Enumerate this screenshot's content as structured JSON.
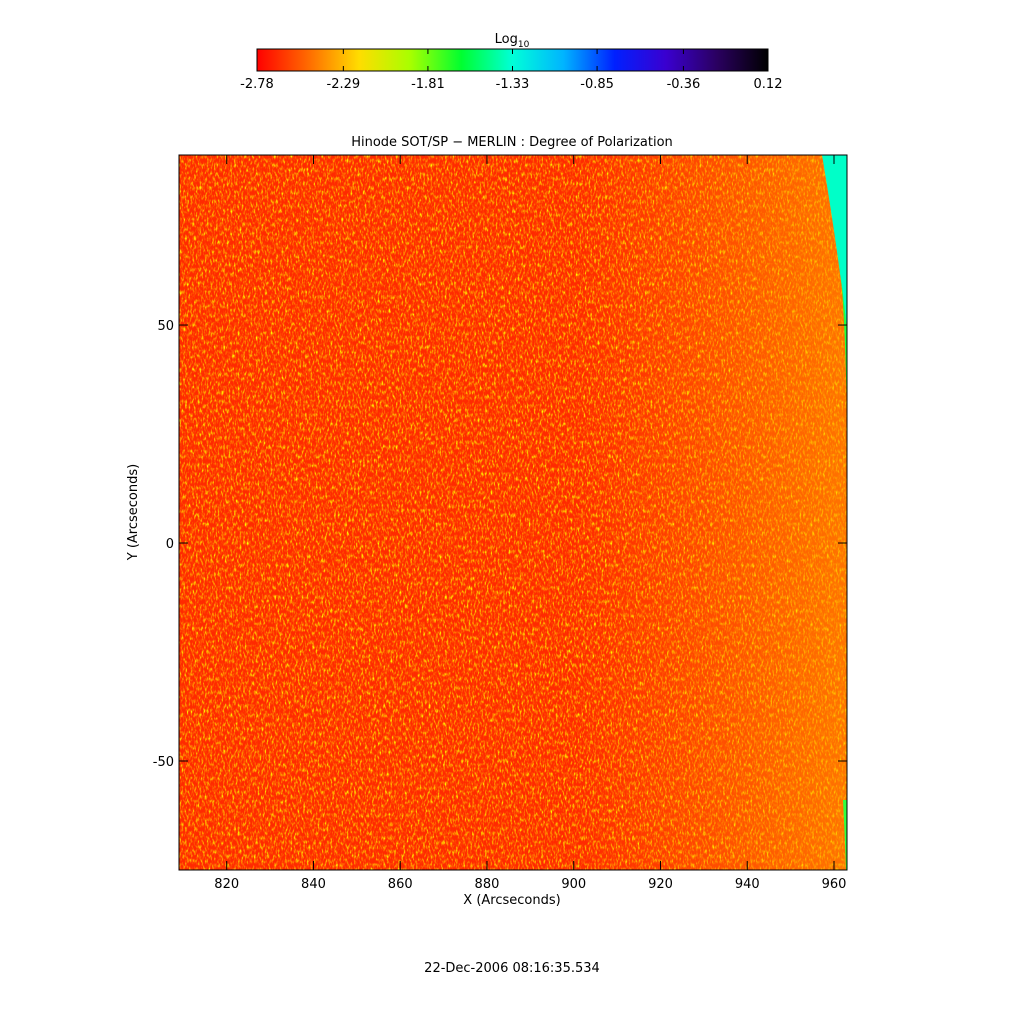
{
  "chart_data": {
    "type": "image",
    "title": "Hinode SOT/SP − MERLIN : Degree of Polarization",
    "x_label": "X (Arcseconds)",
    "y_label": "Y (Arcseconds)",
    "xlim": [
      809,
      963
    ],
    "xticks": [
      820,
      840,
      860,
      880,
      900,
      920,
      940,
      960
    ],
    "ylim": [
      -75,
      89
    ],
    "yticks": [
      -50,
      0,
      50
    ],
    "colorbar": {
      "label": "Log",
      "label_subscript": "10",
      "lim": [
        -2.78,
        0.12
      ],
      "ticks": [
        -2.78,
        -2.29,
        -1.81,
        -1.33,
        -0.85,
        -0.36,
        0.12
      ],
      "colormap": [
        "#ff0000",
        "#ff6a00",
        "#ffdd00",
        "#a8ff00",
        "#00ff30",
        "#00ffd8",
        "#00b4ff",
        "#0020ff",
        "#3a00d0",
        "#2a0060",
        "#000000"
      ]
    },
    "timestamp": "22-Dec-2006 08:16:35.534"
  }
}
